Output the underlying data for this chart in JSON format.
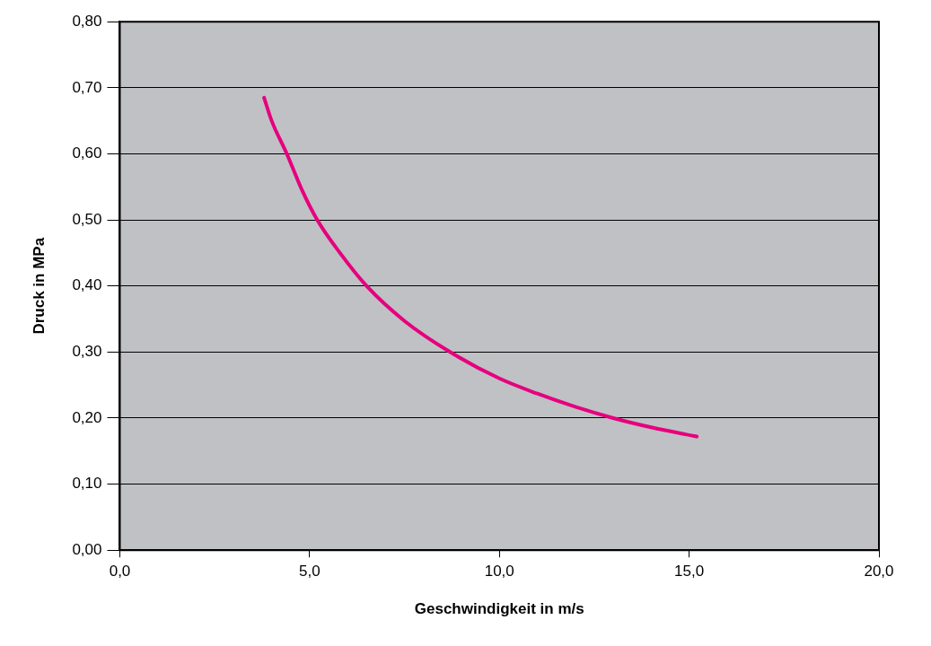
{
  "chart_data": {
    "type": "line",
    "xlabel": "Geschwindigkeit in m/s",
    "ylabel": "Druck in MPa",
    "x": [
      3.8,
      4.0,
      4.4,
      4.8,
      5.2,
      5.8,
      6.5,
      7.5,
      8.7,
      10.0,
      11.0,
      12.0,
      13.0,
      14.0,
      15.2
    ],
    "series": [
      {
        "color": "#e6007e",
        "values": [
          0.685,
          0.65,
          0.6,
          0.545,
          0.5,
          0.45,
          0.4,
          0.347,
          0.3,
          0.26,
          0.237,
          0.217,
          0.2,
          0.186,
          0.172
        ]
      }
    ],
    "xlim": [
      0,
      20
    ],
    "xticks": [
      {
        "value": 0,
        "label": "0,0"
      },
      {
        "value": 5,
        "label": "5,0"
      },
      {
        "value": 10,
        "label": "10,0"
      },
      {
        "value": 15,
        "label": "15,0"
      },
      {
        "value": 20,
        "label": "20,0"
      }
    ],
    "ylim": [
      0,
      0.8
    ],
    "yticks": [
      {
        "value": 0,
        "label": "0,00"
      },
      {
        "value": 0.1,
        "label": "0,10"
      },
      {
        "value": 0.2,
        "label": "0,20"
      },
      {
        "value": 0.3,
        "label": "0,30"
      },
      {
        "value": 0.4,
        "label": "0,40"
      },
      {
        "value": 0.5,
        "label": "0,50"
      },
      {
        "value": 0.6,
        "label": "0,60"
      },
      {
        "value": 0.7,
        "label": "0,70"
      },
      {
        "value": 0.8,
        "label": "0,80"
      }
    ],
    "grid": "y",
    "legend": false,
    "marker": "none",
    "line_style": "solid"
  }
}
